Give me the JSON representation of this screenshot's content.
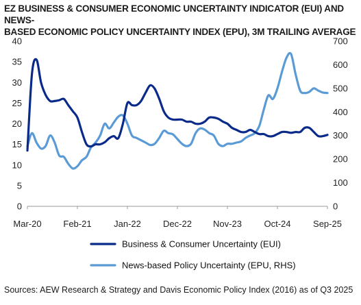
{
  "title_lines": [
    "EZ BUSINESS & CONSUMER ECONOMIC UNCERTAINTY INDICATOR (EUI) AND NEWS-",
    "BASED ECONOMIC POLICY UNCERTAINTY INDEX (EPU), 3M TRAILING AVERAGE"
  ],
  "source": "Sources: AEW Research & Strategy and Davis Economic Policy Index (2016) as of Q3 2025",
  "chart_data": {
    "type": "line",
    "x_tick_labels": [
      "Mar-20",
      "Feb-21",
      "Jan-22",
      "Dec-22",
      "Nov-23",
      "Oct-24",
      "Sep-25"
    ],
    "y_left": {
      "ticks": [
        "0",
        "5",
        "10",
        "15",
        "20",
        "25",
        "30",
        "35",
        "40"
      ],
      "ylim": [
        0,
        40
      ]
    },
    "y_right": {
      "ticks": [
        "0",
        "100",
        "200",
        "300",
        "400",
        "500",
        "600",
        "700"
      ],
      "ylim": [
        0,
        700
      ]
    },
    "grid": false,
    "legend_position": "bottom",
    "series": [
      {
        "name": "Business & Consumer Uncertainty (EUI)",
        "axis": "left",
        "color": "#0a2a8a",
        "x": [
          "Mar-20",
          "Apr-20",
          "May-20",
          "Jun-20",
          "Jul-20",
          "Aug-20",
          "Sep-20",
          "Oct-20",
          "Nov-20",
          "Dec-20",
          "Jan-21",
          "Feb-21",
          "Mar-21",
          "Apr-21",
          "May-21",
          "Jun-21",
          "Jul-21",
          "Aug-21",
          "Sep-21",
          "Oct-21",
          "Nov-21",
          "Dec-21",
          "Jan-22",
          "Feb-22",
          "Mar-22",
          "Apr-22",
          "May-22",
          "Jun-22",
          "Jul-22",
          "Aug-22",
          "Sep-22",
          "Oct-22",
          "Nov-22",
          "Dec-22",
          "Jan-23",
          "Feb-23",
          "Mar-23",
          "Apr-23",
          "May-23",
          "Jun-23",
          "Jul-23",
          "Aug-23",
          "Sep-23",
          "Oct-23",
          "Nov-23",
          "Dec-23",
          "Jan-24",
          "Feb-24",
          "Mar-24",
          "Apr-24",
          "May-24",
          "Jun-24",
          "Jul-24",
          "Aug-24",
          "Sep-24",
          "Oct-24",
          "Nov-24",
          "Dec-24",
          "Jan-25",
          "Feb-25",
          "Mar-25",
          "Apr-25",
          "May-25",
          "Jun-25",
          "Jul-25",
          "Aug-25",
          "Sep-25"
        ],
        "values": [
          13.5,
          32,
          35.5,
          30,
          27,
          25.5,
          25.5,
          25.7,
          26,
          24.5,
          23,
          21.5,
          18,
          15,
          14.5,
          15,
          15,
          15.5,
          16.5,
          17,
          16.5,
          20,
          25,
          24.5,
          24.5,
          25.5,
          27.5,
          29.3,
          28.5,
          26,
          23,
          21.5,
          21,
          21,
          21,
          20.5,
          20.5,
          20,
          20,
          20.5,
          21.5,
          21.5,
          21.2,
          20.5,
          20,
          19,
          18.5,
          18,
          18,
          18.5,
          18,
          17.5,
          17.5,
          17,
          17,
          17.5,
          18,
          18,
          17.8,
          18,
          18,
          19,
          19,
          18,
          17,
          17,
          17.3
        ]
      },
      {
        "name": "News-based Policy Uncertainty (EPU, RHS)",
        "axis": "right",
        "color": "#5b9bd5",
        "x": [
          "Mar-20",
          "Apr-20",
          "May-20",
          "Jun-20",
          "Jul-20",
          "Aug-20",
          "Sep-20",
          "Oct-20",
          "Nov-20",
          "Dec-20",
          "Jan-21",
          "Feb-21",
          "Mar-21",
          "Apr-21",
          "May-21",
          "Jun-21",
          "Jul-21",
          "Aug-21",
          "Sep-21",
          "Oct-21",
          "Nov-21",
          "Dec-21",
          "Jan-22",
          "Feb-22",
          "Mar-22",
          "Apr-22",
          "May-22",
          "Jun-22",
          "Jul-22",
          "Aug-22",
          "Sep-22",
          "Oct-22",
          "Nov-22",
          "Dec-22",
          "Jan-23",
          "Feb-23",
          "Mar-23",
          "Apr-23",
          "May-23",
          "Jun-23",
          "Jul-23",
          "Aug-23",
          "Sep-23",
          "Oct-23",
          "Nov-23",
          "Dec-23",
          "Jan-24",
          "Feb-24",
          "Mar-24",
          "Apr-24",
          "May-24",
          "Jun-24",
          "Jul-24",
          "Aug-24",
          "Sep-24",
          "Oct-24",
          "Nov-24",
          "Dec-24",
          "Jan-25",
          "Feb-25",
          "Mar-25",
          "Apr-25",
          "May-25",
          "Jun-25",
          "Jul-25",
          "Aug-25",
          "Sep-25"
        ],
        "values": [
          255,
          310,
          270,
          245,
          255,
          300,
          270,
          215,
          210,
          180,
          160,
          170,
          195,
          210,
          250,
          270,
          300,
          350,
          330,
          355,
          380,
          385,
          350,
          300,
          290,
          280,
          270,
          260,
          265,
          290,
          320,
          310,
          305,
          285,
          265,
          255,
          265,
          310,
          330,
          325,
          310,
          300,
          265,
          255,
          265,
          265,
          270,
          275,
          290,
          300,
          310,
          340,
          410,
          470,
          455,
          500,
          570,
          630,
          645,
          560,
          490,
          480,
          485,
          500,
          490,
          482,
          480
        ]
      }
    ]
  }
}
